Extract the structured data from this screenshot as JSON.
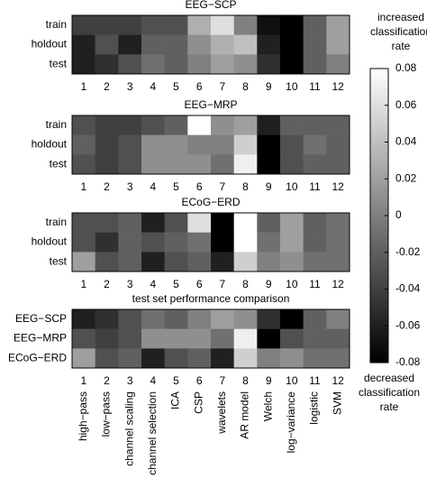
{
  "chart_data": [
    {
      "type": "heatmap",
      "title": "EEG−SCP",
      "categories": [
        "1",
        "2",
        "3",
        "4",
        "5",
        "6",
        "7",
        "8",
        "9",
        "10",
        "11",
        "12"
      ],
      "rows": [
        "train",
        "holdout",
        "test"
      ],
      "values": [
        [
          -0.04,
          -0.04,
          -0.04,
          -0.03,
          -0.03,
          0.03,
          0.06,
          0.0,
          -0.07,
          -0.08,
          -0.02,
          0.02
        ],
        [
          -0.06,
          -0.03,
          -0.06,
          -0.02,
          -0.02,
          0.01,
          0.03,
          0.04,
          -0.06,
          -0.08,
          -0.02,
          0.02
        ],
        [
          -0.06,
          -0.05,
          -0.03,
          -0.01,
          -0.02,
          0.0,
          0.02,
          0.01,
          -0.05,
          -0.08,
          -0.02,
          0.0
        ]
      ]
    },
    {
      "type": "heatmap",
      "title": "EEG−MRP",
      "categories": [
        "1",
        "2",
        "3",
        "4",
        "5",
        "6",
        "7",
        "8",
        "9",
        "10",
        "11",
        "12"
      ],
      "rows": [
        "train",
        "holdout",
        "test"
      ],
      "values": [
        [
          -0.03,
          -0.04,
          -0.04,
          -0.03,
          -0.02,
          0.08,
          0.01,
          0.02,
          -0.06,
          -0.02,
          -0.02,
          -0.02
        ],
        [
          -0.02,
          -0.04,
          -0.03,
          0.01,
          0.01,
          0.0,
          0.0,
          0.05,
          -0.08,
          -0.03,
          -0.01,
          -0.02
        ],
        [
          -0.03,
          -0.04,
          -0.03,
          0.01,
          0.01,
          0.01,
          -0.01,
          0.07,
          -0.08,
          -0.03,
          -0.02,
          -0.02
        ]
      ]
    },
    {
      "type": "heatmap",
      "title": "ECoG−ERD",
      "categories": [
        "1",
        "2",
        "3",
        "4",
        "5",
        "6",
        "7",
        "8",
        "9",
        "10",
        "11",
        "12"
      ],
      "rows": [
        "train",
        "holdout",
        "test"
      ],
      "values": [
        [
          -0.03,
          -0.03,
          -0.02,
          -0.06,
          -0.03,
          0.06,
          -0.08,
          0.08,
          -0.02,
          0.02,
          -0.02,
          -0.01
        ],
        [
          -0.03,
          -0.05,
          -0.02,
          -0.03,
          -0.02,
          -0.01,
          -0.08,
          0.08,
          -0.01,
          0.02,
          -0.02,
          -0.01
        ],
        [
          0.02,
          -0.03,
          -0.02,
          -0.06,
          -0.03,
          -0.02,
          -0.06,
          0.05,
          0.0,
          0.01,
          -0.01,
          -0.01
        ]
      ]
    },
    {
      "type": "heatmap",
      "title": "test set performance comparison",
      "categories": [
        "1",
        "2",
        "3",
        "4",
        "5",
        "6",
        "7",
        "8",
        "9",
        "10",
        "11",
        "12"
      ],
      "category_names": [
        "high−pass",
        "low−pass",
        "channel scaling",
        "channel selection",
        "ICA",
        "CSP",
        "wavelets",
        "AR model",
        "Welch",
        "log−variance",
        "logistic",
        "SVM"
      ],
      "rows": [
        "EEG−SCP",
        "EEG−MRP",
        "ECoG−ERD"
      ],
      "values": [
        [
          -0.06,
          -0.05,
          -0.03,
          -0.01,
          -0.02,
          0.0,
          0.02,
          0.01,
          -0.05,
          -0.08,
          -0.02,
          0.0
        ],
        [
          -0.03,
          -0.04,
          -0.03,
          0.01,
          0.01,
          0.01,
          -0.01,
          0.07,
          -0.08,
          -0.03,
          -0.02,
          -0.02
        ],
        [
          0.02,
          -0.03,
          -0.02,
          -0.06,
          -0.03,
          -0.02,
          -0.06,
          0.05,
          0.0,
          0.01,
          -0.01,
          -0.01
        ]
      ]
    },
    {
      "type": "colorbar",
      "top_label": [
        "increased",
        "classification",
        "rate"
      ],
      "bottom_label": [
        "decreased",
        "classification",
        "rate"
      ],
      "ylim": [
        -0.08,
        0.08
      ],
      "yticks": [
        -0.08,
        -0.06,
        -0.04,
        -0.02,
        0,
        0.02,
        0.04,
        0.06,
        0.08
      ]
    }
  ]
}
